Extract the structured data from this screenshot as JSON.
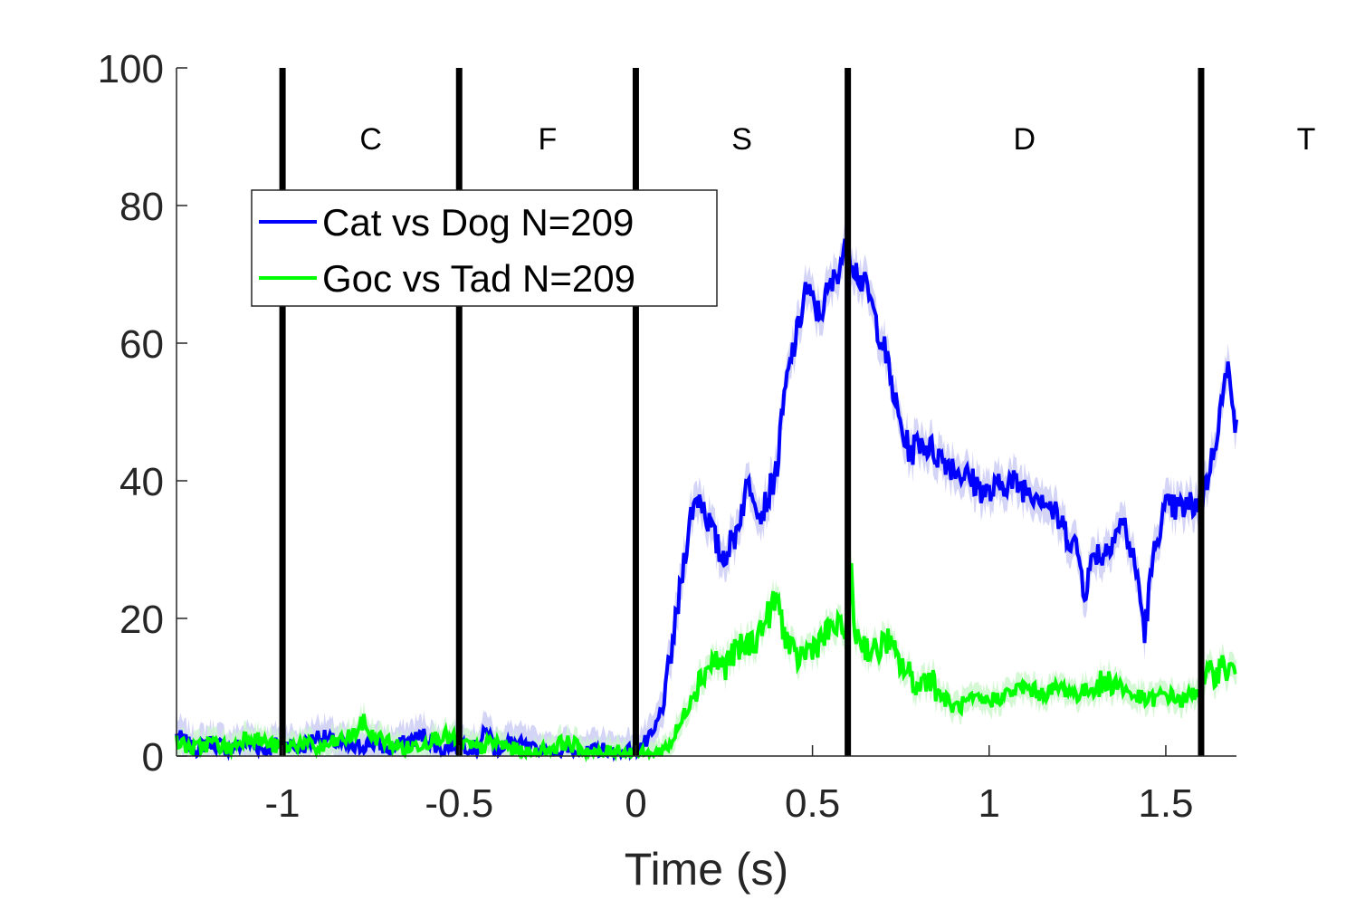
{
  "chart_data": {
    "type": "line",
    "xlabel": "Time (s)",
    "ylabel": "",
    "xlim": [
      -1.3,
      1.7
    ],
    "ylim": [
      0,
      100
    ],
    "xticks": [
      -1,
      -0.5,
      0,
      0.5,
      1,
      1.5
    ],
    "xtick_labels": [
      "-1",
      "-0.5",
      "0",
      "0.5",
      "1",
      "1.5"
    ],
    "yticks": [
      0,
      20,
      40,
      60,
      80,
      100
    ],
    "ytick_labels": [
      "0",
      "20",
      "40",
      "60",
      "80",
      "100"
    ],
    "grid": false,
    "legend": {
      "position": "upper-left",
      "boxed": true
    },
    "epochs": {
      "boundaries": [
        -1,
        -0.5,
        0,
        0.6,
        1.6
      ],
      "labels": [
        {
          "text": "C",
          "x": -0.75
        },
        {
          "text": "F",
          "x": -0.25
        },
        {
          "text": "S",
          "x": 0.3
        },
        {
          "text": "D",
          "x": 1.1
        },
        {
          "text": "T",
          "x": 1.9
        }
      ],
      "color": "#000000"
    },
    "series": [
      {
        "name": "Cat vs Dog N=209",
        "color": "#0000ff",
        "band_color": "#c9c9f5",
        "x": [
          -1.3,
          -1.25,
          -1.2,
          -1.15,
          -1.1,
          -1.05,
          -1.0,
          -0.95,
          -0.9,
          -0.85,
          -0.8,
          -0.75,
          -0.7,
          -0.65,
          -0.6,
          -0.55,
          -0.5,
          -0.45,
          -0.42,
          -0.4,
          -0.35,
          -0.3,
          -0.25,
          -0.2,
          -0.15,
          -0.1,
          -0.05,
          0.0,
          0.03,
          0.05,
          0.08,
          0.1,
          0.12,
          0.14,
          0.16,
          0.18,
          0.2,
          0.22,
          0.24,
          0.26,
          0.28,
          0.3,
          0.32,
          0.34,
          0.35,
          0.37,
          0.4,
          0.42,
          0.44,
          0.46,
          0.48,
          0.5,
          0.52,
          0.54,
          0.56,
          0.58,
          0.6,
          0.62,
          0.64,
          0.66,
          0.68,
          0.7,
          0.72,
          0.74,
          0.76,
          0.78,
          0.8,
          0.85,
          0.9,
          0.95,
          1.0,
          1.05,
          1.1,
          1.15,
          1.2,
          1.25,
          1.27,
          1.3,
          1.32,
          1.35,
          1.38,
          1.4,
          1.42,
          1.44,
          1.46,
          1.48,
          1.5,
          1.55,
          1.6,
          1.63,
          1.66,
          1.68,
          1.7
        ],
        "y": [
          3,
          1,
          2,
          1,
          2,
          1,
          2,
          1,
          3,
          2,
          1,
          2,
          1,
          2,
          3,
          1,
          2,
          1,
          4,
          1,
          2,
          1,
          0,
          1,
          0,
          1,
          0,
          1,
          2,
          3,
          8,
          15,
          22,
          30,
          36,
          38,
          35,
          32,
          29,
          30,
          32,
          36,
          40,
          38,
          35,
          37,
          42,
          52,
          58,
          62,
          68,
          66,
          64,
          67,
          69,
          72,
          74,
          71,
          69,
          67,
          63,
          60,
          55,
          50,
          46,
          44,
          46,
          44,
          42,
          40,
          38,
          40,
          39,
          38,
          34,
          30,
          24,
          30,
          29,
          32,
          34,
          30,
          26,
          18,
          27,
          33,
          36,
          36,
          37,
          43,
          52,
          57,
          47
        ]
      },
      {
        "name": "Goc vs Tad N=209",
        "color": "#00ff00",
        "band_color": "#c9f5c9",
        "x": [
          -1.3,
          -1.25,
          -1.2,
          -1.15,
          -1.1,
          -1.05,
          -1.0,
          -0.95,
          -0.9,
          -0.85,
          -0.8,
          -0.77,
          -0.75,
          -0.7,
          -0.65,
          -0.6,
          -0.55,
          -0.5,
          -0.45,
          -0.4,
          -0.35,
          -0.3,
          -0.25,
          -0.2,
          -0.15,
          -0.1,
          -0.05,
          0.0,
          0.05,
          0.08,
          0.1,
          0.13,
          0.16,
          0.19,
          0.22,
          0.25,
          0.28,
          0.31,
          0.34,
          0.37,
          0.4,
          0.42,
          0.45,
          0.48,
          0.5,
          0.53,
          0.56,
          0.58,
          0.6,
          0.61,
          0.62,
          0.65,
          0.68,
          0.71,
          0.74,
          0.77,
          0.8,
          0.83,
          0.86,
          0.9,
          0.95,
          1.0,
          1.05,
          1.1,
          1.15,
          1.2,
          1.25,
          1.3,
          1.35,
          1.4,
          1.45,
          1.5,
          1.55,
          1.6,
          1.63,
          1.66,
          1.7
        ],
        "y": [
          2,
          1,
          2,
          1,
          3,
          2,
          1,
          2,
          1,
          2,
          3,
          5,
          3,
          2,
          1,
          2,
          3,
          2,
          1,
          2,
          1,
          0,
          1,
          2,
          1,
          0,
          1,
          0,
          0,
          1,
          2,
          5,
          9,
          12,
          14,
          13,
          15,
          16,
          17,
          20,
          23,
          18,
          14,
          15,
          16,
          17,
          19,
          18,
          20,
          26,
          18,
          16,
          15,
          17,
          14,
          12,
          10,
          12,
          9,
          7,
          8,
          8,
          9,
          10,
          9,
          10,
          9,
          10,
          11,
          9,
          8,
          9,
          8,
          10,
          12,
          13,
          12
        ]
      }
    ]
  }
}
